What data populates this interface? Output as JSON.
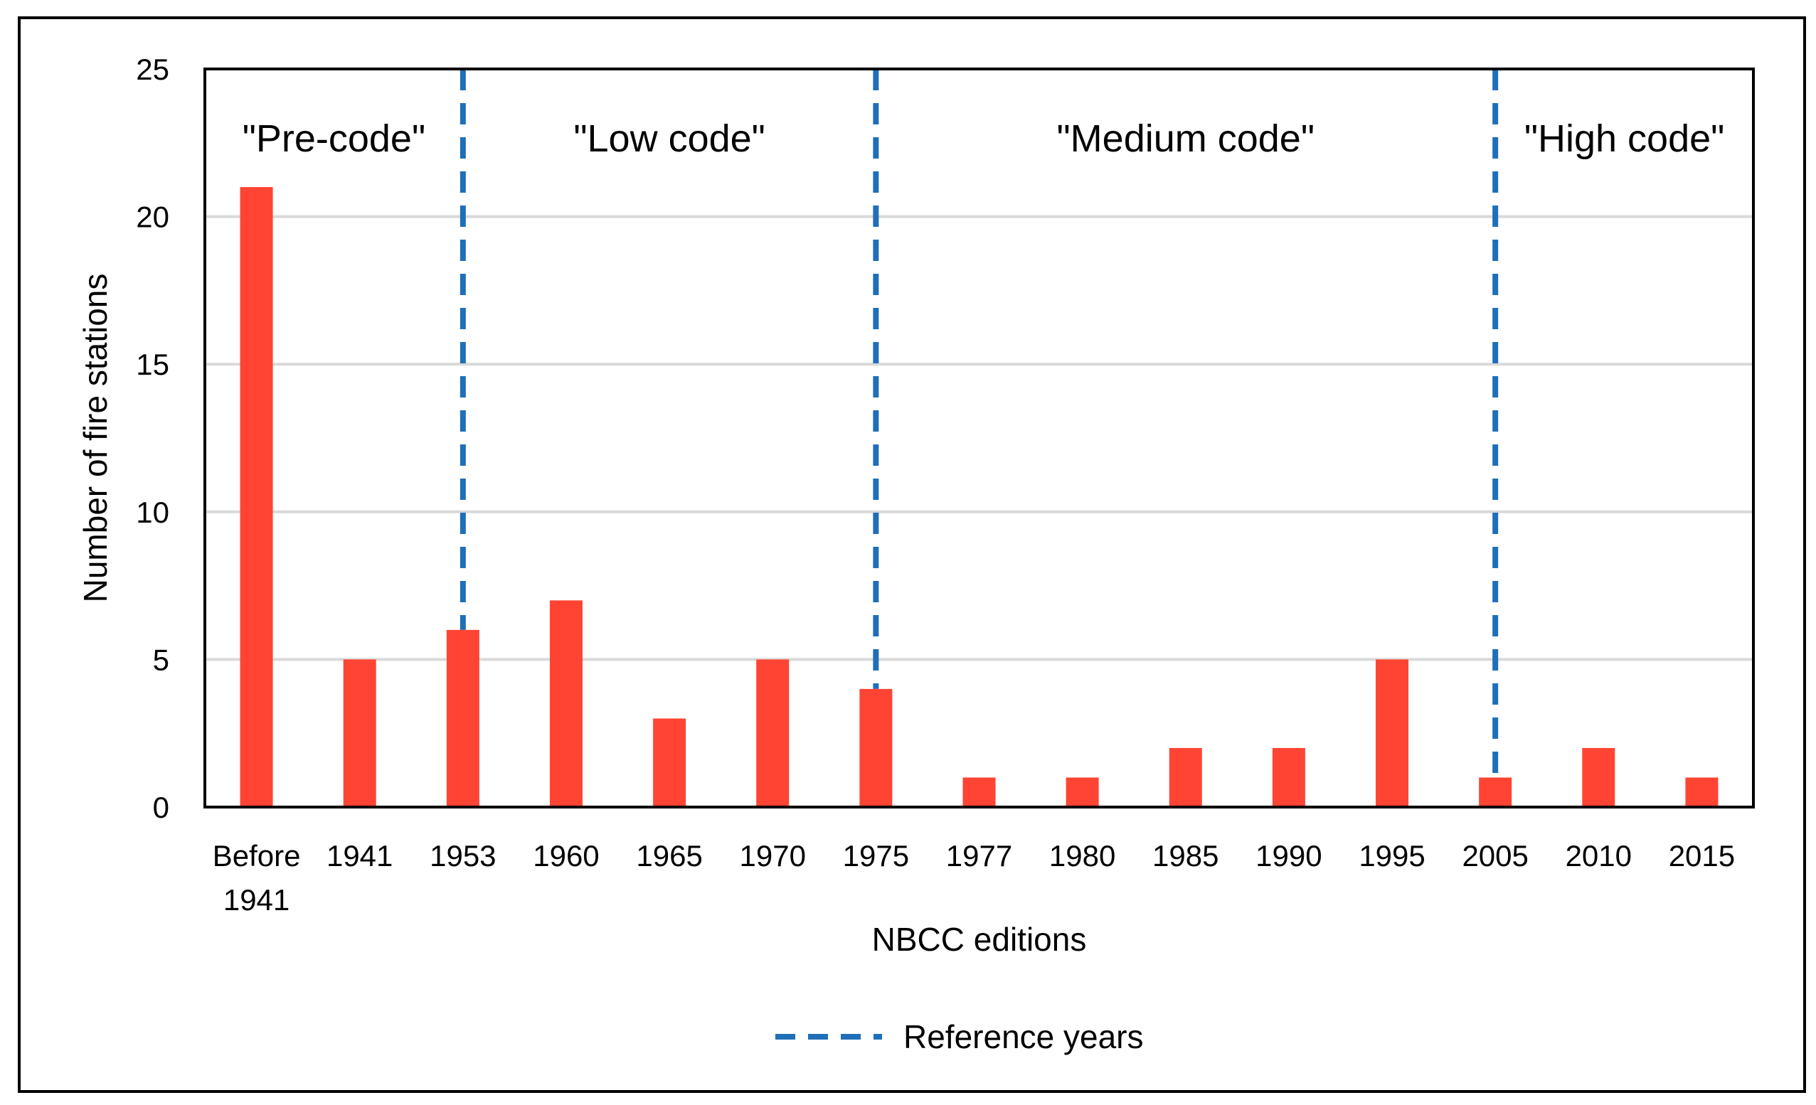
{
  "chart_data": {
    "type": "bar",
    "categories": [
      [
        "Before",
        "1941"
      ],
      [
        "1941"
      ],
      [
        "1953"
      ],
      [
        "1960"
      ],
      [
        "1965"
      ],
      [
        "1970"
      ],
      [
        "1975"
      ],
      [
        "1977"
      ],
      [
        "1980"
      ],
      [
        "1985"
      ],
      [
        "1990"
      ],
      [
        "1995"
      ],
      [
        "2005"
      ],
      [
        "2010"
      ],
      [
        "2015"
      ]
    ],
    "values": [
      21,
      5,
      6,
      7,
      3,
      5,
      4,
      1,
      1,
      2,
      2,
      5,
      1,
      2,
      1
    ],
    "xlabel": "NBCC editions",
    "ylabel": "Number of fire stations",
    "ylim": [
      0,
      25
    ],
    "yticks": [
      0,
      5,
      10,
      15,
      20,
      25
    ],
    "grid": true,
    "bar_color": "#ff4433",
    "reference_lines": {
      "label": "Reference years",
      "color": "#1f6fb8",
      "categories": [
        "1953",
        "1975",
        "2005"
      ]
    },
    "eras": [
      "\"Pre-code\"",
      "\"Low code\"",
      "\"Medium code\"",
      "\"High code\""
    ],
    "legend": {
      "position": "bottom-center",
      "entries": [
        "Reference years"
      ]
    }
  }
}
